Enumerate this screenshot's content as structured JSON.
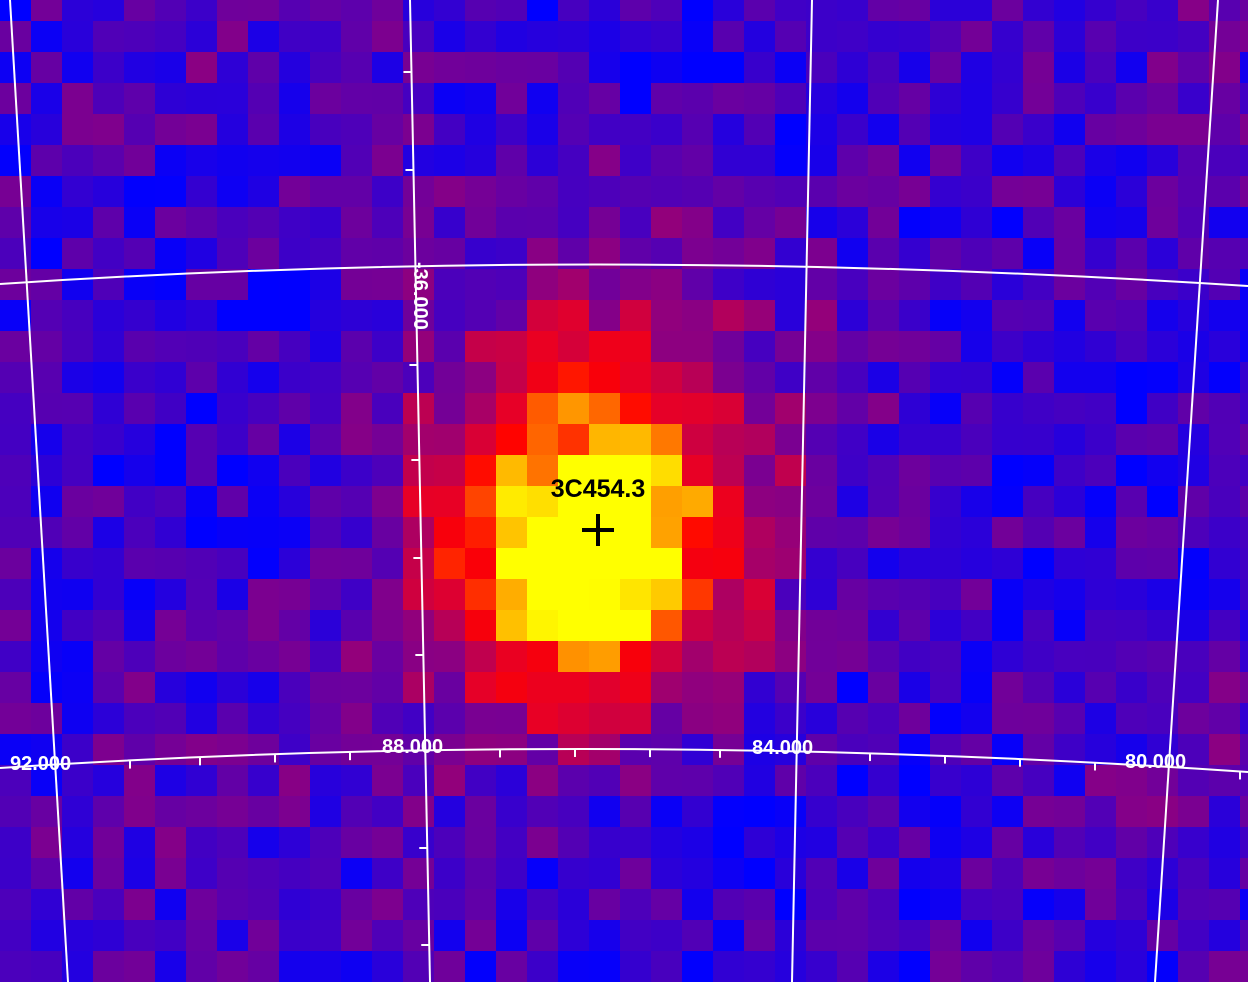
{
  "source": {
    "name": "3C454.3"
  },
  "grid_labels": {
    "dec": [
      "-36.000"
    ],
    "ra": [
      "92.000",
      "88.000",
      "84.000",
      "80.000"
    ]
  }
}
